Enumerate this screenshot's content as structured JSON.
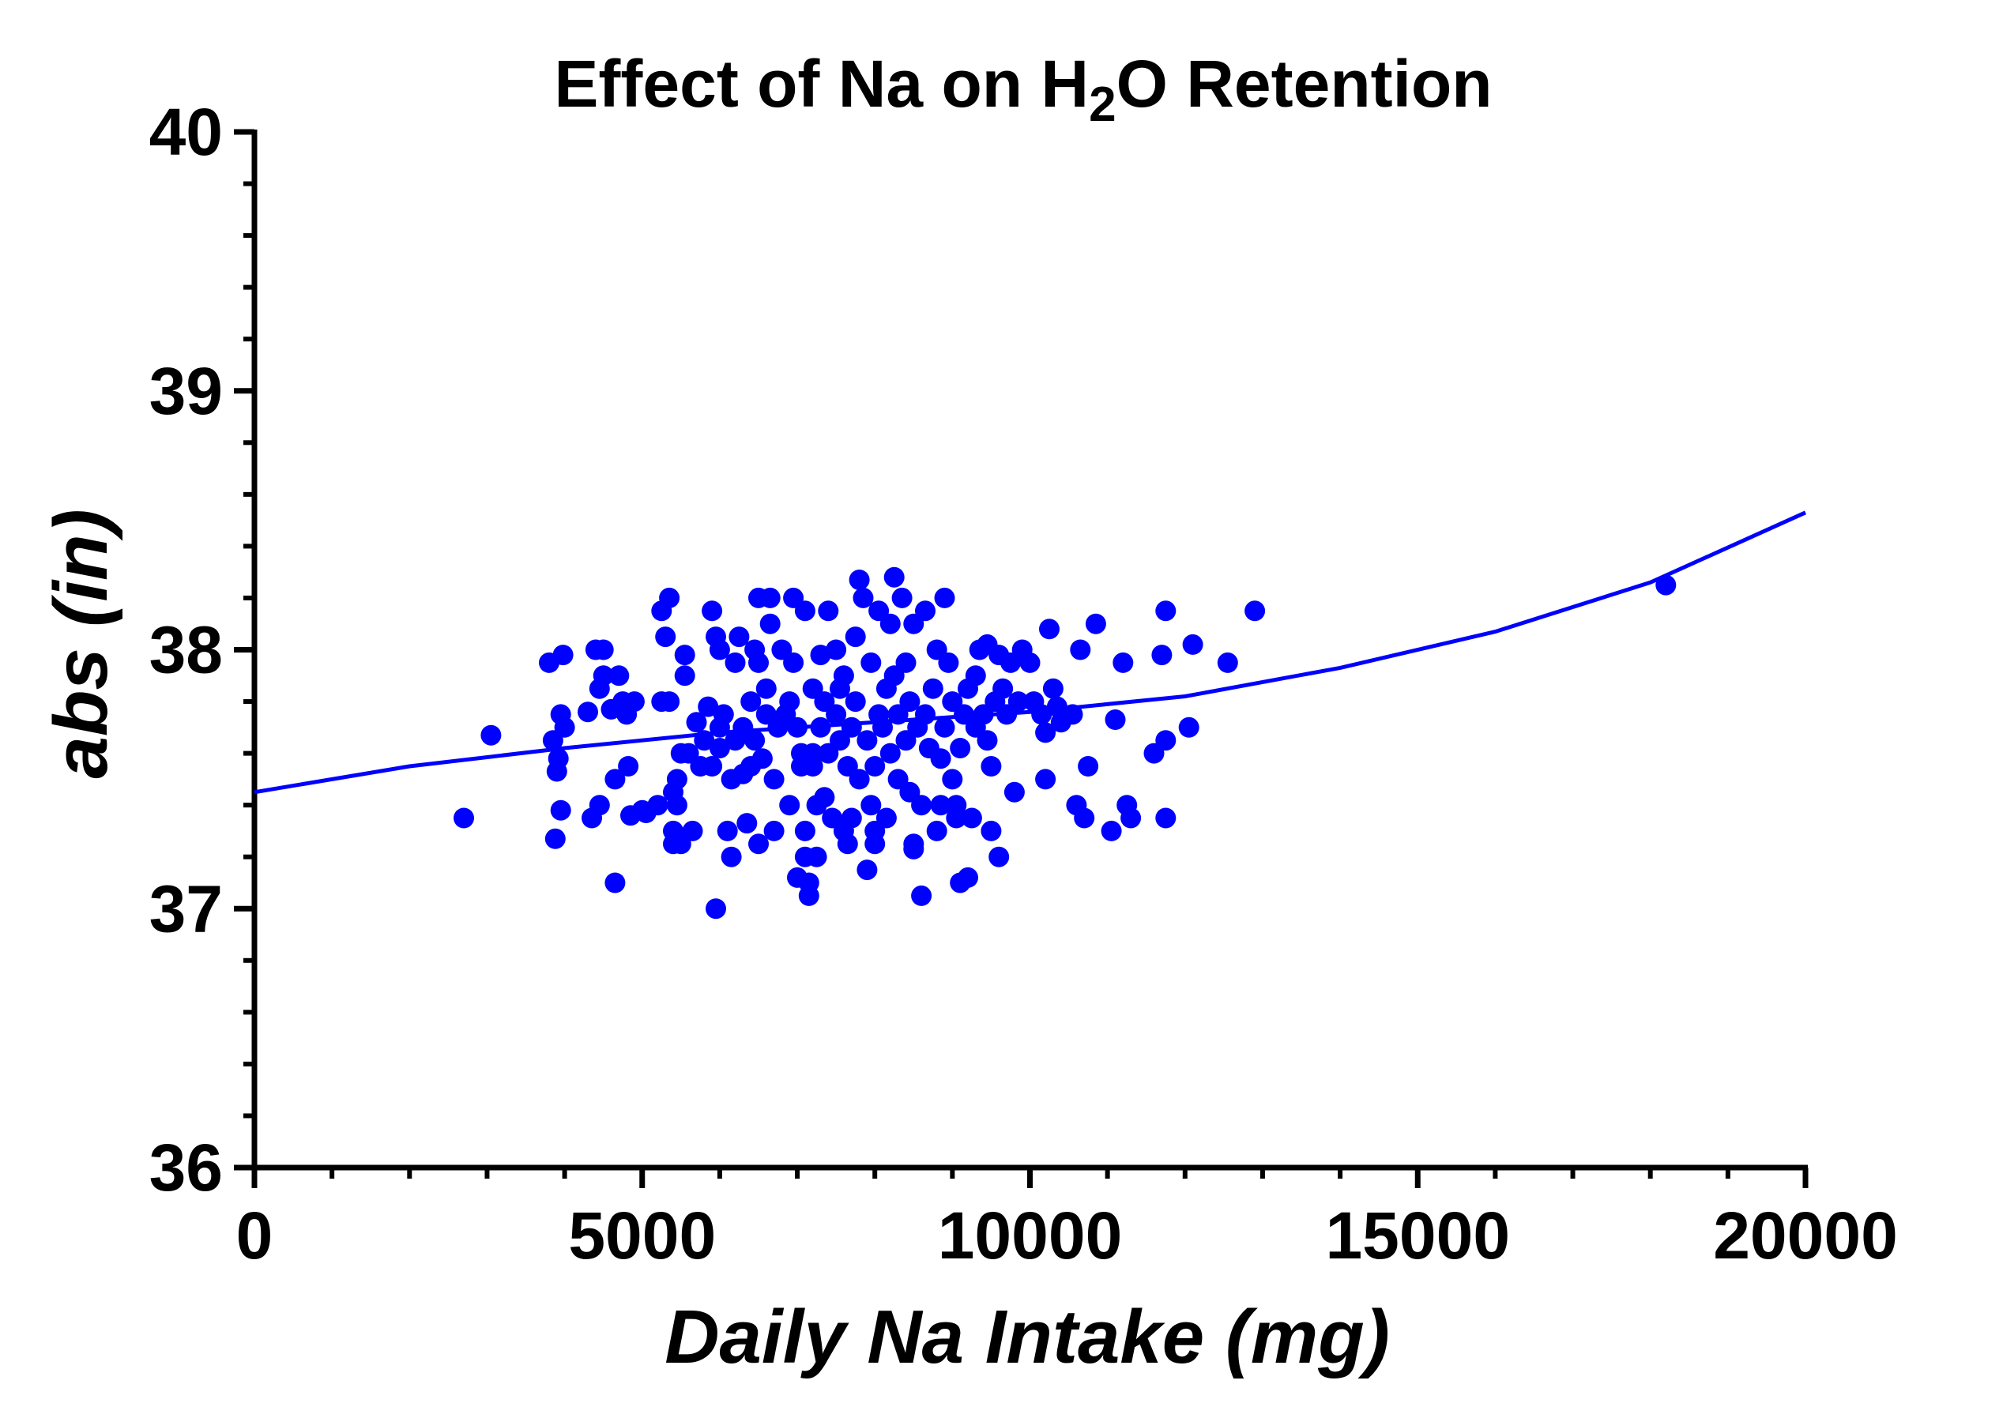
{
  "chart_data": {
    "type": "scatter",
    "title_parts": [
      "Effect of Na on H",
      "2",
      "O Retention"
    ],
    "xlabel": "Daily Na Intake (mg)",
    "ylabel": "abs (in)",
    "xlim": [
      0,
      20000
    ],
    "ylim": [
      36,
      40
    ],
    "x_ticks": [
      "0",
      "5000",
      "10000",
      "15000",
      "20000"
    ],
    "y_ticks": [
      "36",
      "37",
      "38",
      "39",
      "40"
    ],
    "grid": false,
    "legend": "none",
    "colors": {
      "points": "#0000ff",
      "fit": "#0000ff",
      "axes": "#000000"
    },
    "fit_curve": [
      [
        0,
        37.45
      ],
      [
        2000,
        37.55
      ],
      [
        4000,
        37.62
      ],
      [
        6000,
        37.68
      ],
      [
        8000,
        37.72
      ],
      [
        10000,
        37.76
      ],
      [
        12000,
        37.82
      ],
      [
        14000,
        37.93
      ],
      [
        16000,
        38.07
      ],
      [
        18000,
        38.26
      ],
      [
        20000,
        38.53
      ]
    ],
    "points": [
      [
        2700,
        37.35
      ],
      [
        3050,
        37.67
      ],
      [
        3800,
        37.95
      ],
      [
        3850,
        37.65
      ],
      [
        3880,
        37.27
      ],
      [
        3900,
        37.53
      ],
      [
        3920,
        37.58
      ],
      [
        3950,
        37.38
      ],
      [
        3950,
        37.75
      ],
      [
        3980,
        37.98
      ],
      [
        4000,
        37.7
      ],
      [
        4300,
        37.76
      ],
      [
        4350,
        37.35
      ],
      [
        4400,
        38.0
      ],
      [
        4450,
        37.4
      ],
      [
        4450,
        37.85
      ],
      [
        4500,
        37.9
      ],
      [
        4500,
        38.0
      ],
      [
        4600,
        37.77
      ],
      [
        4650,
        37.5
      ],
      [
        4650,
        37.1
      ],
      [
        4700,
        37.9
      ],
      [
        4750,
        37.8
      ],
      [
        4800,
        37.75
      ],
      [
        4820,
        37.55
      ],
      [
        4850,
        37.36
      ],
      [
        4900,
        37.8
      ],
      [
        5000,
        37.38
      ],
      [
        5050,
        37.37
      ],
      [
        5200,
        37.4
      ],
      [
        5250,
        37.8
      ],
      [
        5250,
        38.15
      ],
      [
        5300,
        38.05
      ],
      [
        5350,
        38.2
      ],
      [
        5350,
        37.8
      ],
      [
        5400,
        37.45
      ],
      [
        5400,
        37.25
      ],
      [
        5400,
        37.3
      ],
      [
        5450,
        37.5
      ],
      [
        5450,
        37.4
      ],
      [
        5500,
        37.6
      ],
      [
        5500,
        37.25
      ],
      [
        5550,
        37.9
      ],
      [
        5550,
        37.98
      ],
      [
        5600,
        37.6
      ],
      [
        5650,
        37.3
      ],
      [
        5700,
        37.72
      ],
      [
        5750,
        37.55
      ],
      [
        5800,
        37.65
      ],
      [
        5850,
        37.78
      ],
      [
        5900,
        38.15
      ],
      [
        5900,
        37.55
      ],
      [
        5950,
        37.0
      ],
      [
        5950,
        38.05
      ],
      [
        6000,
        37.7
      ],
      [
        6000,
        37.62
      ],
      [
        6000,
        38.0
      ],
      [
        6050,
        37.75
      ],
      [
        6100,
        37.3
      ],
      [
        6150,
        37.2
      ],
      [
        6150,
        37.5
      ],
      [
        6200,
        37.65
      ],
      [
        6200,
        37.95
      ],
      [
        6250,
        38.05
      ],
      [
        6300,
        37.7
      ],
      [
        6300,
        37.52
      ],
      [
        6350,
        37.33
      ],
      [
        6400,
        37.8
      ],
      [
        6400,
        37.55
      ],
      [
        6450,
        37.65
      ],
      [
        6450,
        38.0
      ],
      [
        6500,
        38.2
      ],
      [
        6500,
        37.25
      ],
      [
        6500,
        37.95
      ],
      [
        6550,
        37.58
      ],
      [
        6600,
        37.75
      ],
      [
        6600,
        37.85
      ],
      [
        6650,
        38.1
      ],
      [
        6650,
        38.2
      ],
      [
        6700,
        37.5
      ],
      [
        6700,
        37.3
      ],
      [
        6750,
        37.7
      ],
      [
        6800,
        38.0
      ],
      [
        6850,
        37.75
      ],
      [
        6900,
        37.4
      ],
      [
        6900,
        37.8
      ],
      [
        6950,
        38.2
      ],
      [
        6950,
        37.95
      ],
      [
        7000,
        37.12
      ],
      [
        7000,
        37.7
      ],
      [
        7050,
        37.55
      ],
      [
        7050,
        37.6
      ],
      [
        7100,
        38.15
      ],
      [
        7100,
        37.3
      ],
      [
        7100,
        37.2
      ],
      [
        7150,
        37.1
      ],
      [
        7150,
        37.05
      ],
      [
        7200,
        37.55
      ],
      [
        7200,
        37.85
      ],
      [
        7200,
        37.6
      ],
      [
        7250,
        37.4
      ],
      [
        7250,
        37.2
      ],
      [
        7300,
        37.7
      ],
      [
        7300,
        37.98
      ],
      [
        7350,
        37.43
      ],
      [
        7350,
        37.8
      ],
      [
        7400,
        38.15
      ],
      [
        7400,
        37.6
      ],
      [
        7450,
        37.35
      ],
      [
        7500,
        37.75
      ],
      [
        7500,
        38.0
      ],
      [
        7550,
        37.85
      ],
      [
        7550,
        37.65
      ],
      [
        7600,
        37.3
      ],
      [
        7600,
        37.9
      ],
      [
        7650,
        37.25
      ],
      [
        7650,
        37.55
      ],
      [
        7700,
        37.35
      ],
      [
        7700,
        37.7
      ],
      [
        7750,
        38.05
      ],
      [
        7750,
        37.8
      ],
      [
        7800,
        38.27
      ],
      [
        7800,
        37.5
      ],
      [
        7850,
        38.2
      ],
      [
        7900,
        37.65
      ],
      [
        7900,
        37.15
      ],
      [
        7950,
        37.4
      ],
      [
        7950,
        37.95
      ],
      [
        8000,
        37.55
      ],
      [
        8000,
        37.3
      ],
      [
        8000,
        37.25
      ],
      [
        8050,
        37.75
      ],
      [
        8050,
        38.15
      ],
      [
        8100,
        37.7
      ],
      [
        8150,
        37.35
      ],
      [
        8150,
        37.85
      ],
      [
        8200,
        37.6
      ],
      [
        8200,
        38.1
      ],
      [
        8250,
        38.28
      ],
      [
        8250,
        37.9
      ],
      [
        8300,
        37.75
      ],
      [
        8300,
        37.5
      ],
      [
        8350,
        38.2
      ],
      [
        8400,
        37.65
      ],
      [
        8400,
        37.95
      ],
      [
        8450,
        37.45
      ],
      [
        8450,
        37.8
      ],
      [
        8500,
        38.1
      ],
      [
        8500,
        37.25
      ],
      [
        8500,
        37.23
      ],
      [
        8550,
        37.7
      ],
      [
        8600,
        37.05
      ],
      [
        8600,
        37.4
      ],
      [
        8650,
        38.15
      ],
      [
        8650,
        37.75
      ],
      [
        8700,
        37.62
      ],
      [
        8750,
        37.85
      ],
      [
        8800,
        37.3
      ],
      [
        8800,
        38.0
      ],
      [
        8850,
        37.4
      ],
      [
        8850,
        37.58
      ],
      [
        8900,
        38.2
      ],
      [
        8900,
        37.7
      ],
      [
        8950,
        37.95
      ],
      [
        9000,
        37.5
      ],
      [
        9000,
        37.8
      ],
      [
        9050,
        37.4
      ],
      [
        9050,
        37.35
      ],
      [
        9100,
        37.1
      ],
      [
        9100,
        37.62
      ],
      [
        9150,
        37.75
      ],
      [
        9200,
        37.12
      ],
      [
        9200,
        37.85
      ],
      [
        9250,
        37.35
      ],
      [
        9300,
        37.9
      ],
      [
        9300,
        37.7
      ],
      [
        9350,
        38.0
      ],
      [
        9400,
        37.75
      ],
      [
        9450,
        37.65
      ],
      [
        9450,
        38.02
      ],
      [
        9500,
        37.3
      ],
      [
        9500,
        37.55
      ],
      [
        9550,
        37.8
      ],
      [
        9600,
        37.2
      ],
      [
        9600,
        37.98
      ],
      [
        9650,
        37.85
      ],
      [
        9700,
        37.75
      ],
      [
        9750,
        37.95
      ],
      [
        9800,
        37.45
      ],
      [
        9850,
        37.8
      ],
      [
        9900,
        38.0
      ],
      [
        10000,
        37.95
      ],
      [
        10050,
        37.8
      ],
      [
        10150,
        37.75
      ],
      [
        10200,
        37.5
      ],
      [
        10200,
        37.68
      ],
      [
        10250,
        38.08
      ],
      [
        10300,
        37.85
      ],
      [
        10350,
        37.78
      ],
      [
        10400,
        37.72
      ],
      [
        10550,
        37.75
      ],
      [
        10600,
        37.4
      ],
      [
        10650,
        38.0
      ],
      [
        10700,
        37.35
      ],
      [
        10750,
        37.55
      ],
      [
        10850,
        38.1
      ],
      [
        11050,
        37.3
      ],
      [
        11100,
        37.73
      ],
      [
        11200,
        37.95
      ],
      [
        11250,
        37.4
      ],
      [
        11300,
        37.35
      ],
      [
        11600,
        37.6
      ],
      [
        11700,
        37.98
      ],
      [
        11750,
        37.65
      ],
      [
        11750,
        38.15
      ],
      [
        11750,
        37.35
      ],
      [
        12050,
        37.7
      ],
      [
        12100,
        38.02
      ],
      [
        12550,
        37.95
      ],
      [
        12900,
        38.15
      ],
      [
        18200,
        38.25
      ]
    ]
  }
}
